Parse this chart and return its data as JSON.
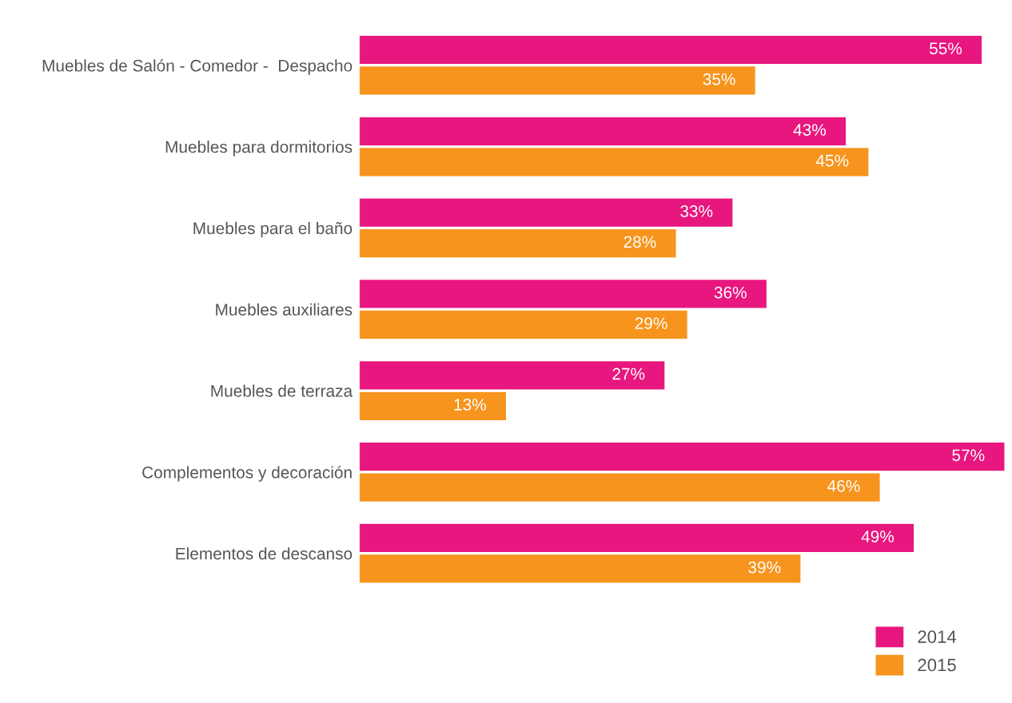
{
  "chart_data": {
    "type": "bar",
    "orientation": "horizontal",
    "categories": [
      "Muebles de Salón - Comedor -  Despacho",
      "Muebles para dormitorios",
      "Muebles para el baño",
      "Muebles auxiliares",
      "Muebles de terraza",
      "Complementos y decoración",
      "Elementos de descanso"
    ],
    "series": [
      {
        "name": "2014",
        "color": "#e8177f",
        "values": [
          55,
          43,
          33,
          36,
          27,
          57,
          49
        ],
        "value_labels": [
          "55%",
          "43%",
          "33%",
          "36%",
          "27%",
          "57%",
          "49%"
        ]
      },
      {
        "name": "2015",
        "color": "#f7941d",
        "values": [
          35,
          45,
          28,
          29,
          13,
          46,
          39
        ],
        "value_labels": [
          "35%",
          "45%",
          "28%",
          "29%",
          "13%",
          "46%",
          "39%"
        ]
      }
    ],
    "tick_labels": "y",
    "legend": "bottom right",
    "grid": false
  }
}
